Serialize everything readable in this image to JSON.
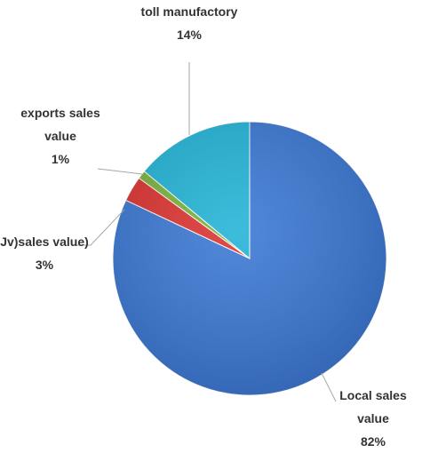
{
  "chart_data": {
    "type": "pie",
    "categories": [
      "Local sales value",
      "Jv)sales value)",
      "exports sales value",
      "toll manufactory"
    ],
    "values": [
      82,
      3,
      1,
      14
    ],
    "value_labels": [
      "82%",
      "3%",
      "1%",
      "14%"
    ],
    "colors": [
      "#3b78d4",
      "#dc3331",
      "#7ab33c",
      "#22b4d6"
    ]
  }
}
